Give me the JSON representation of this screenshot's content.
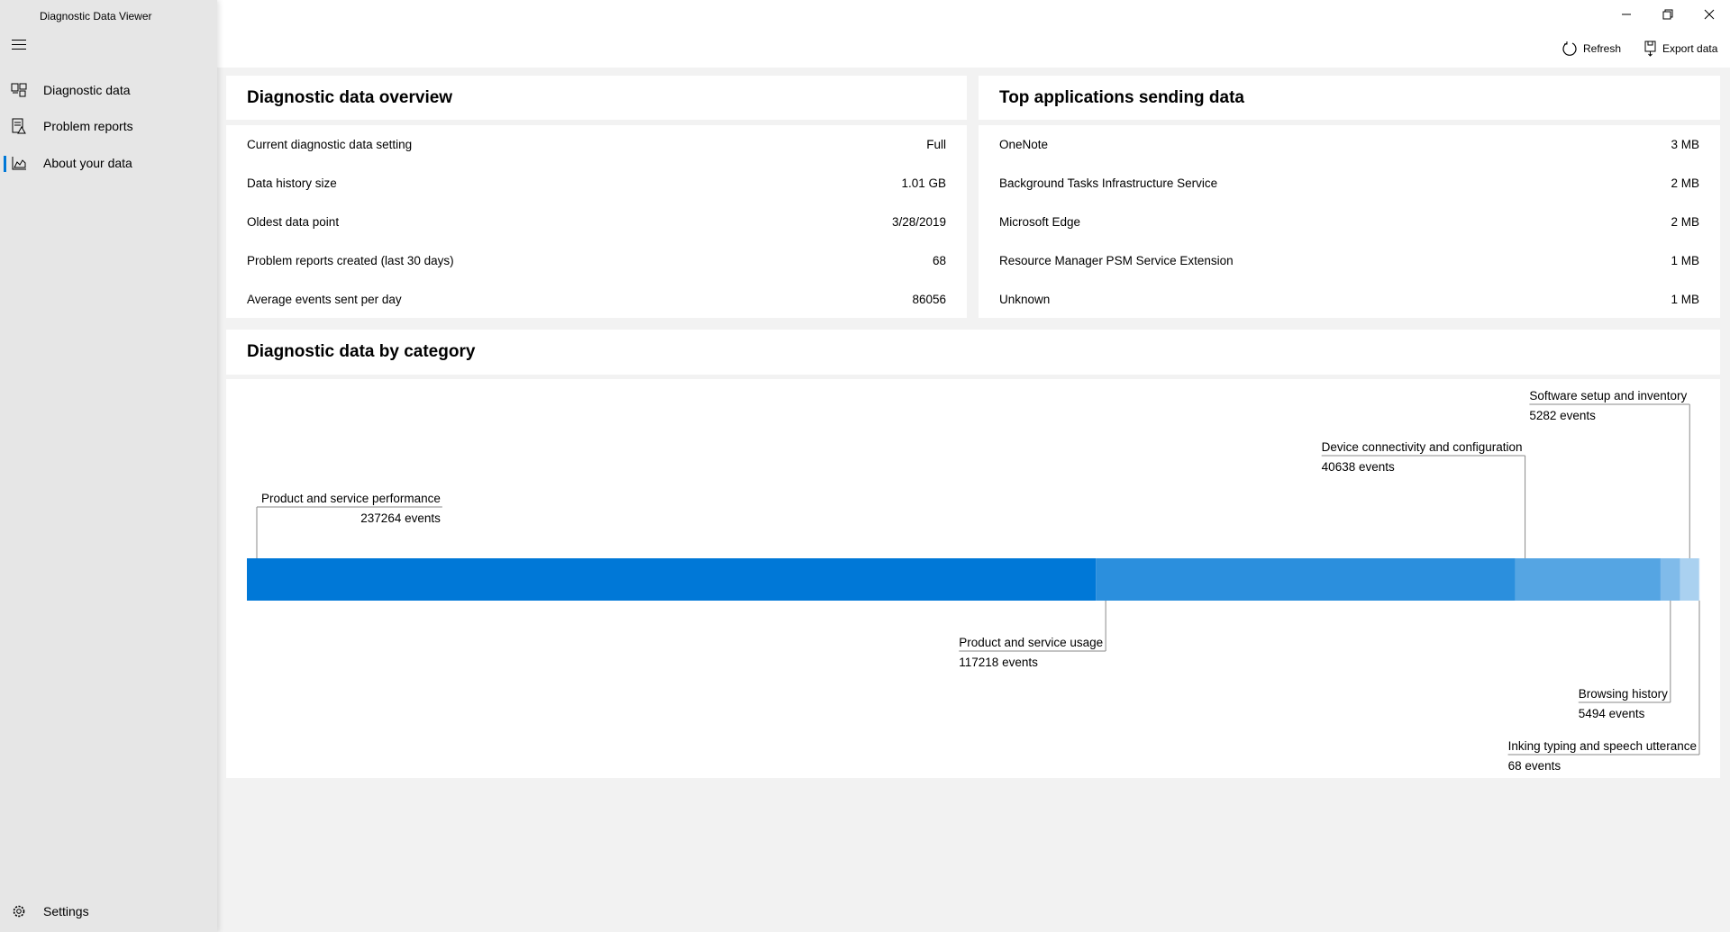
{
  "app": {
    "title": "Diagnostic Data Viewer"
  },
  "sidebar": {
    "items": [
      {
        "label": "Diagnostic data",
        "icon": "diagnostic-data-icon"
      },
      {
        "label": "Problem reports",
        "icon": "problem-reports-icon"
      },
      {
        "label": "About your data",
        "icon": "about-data-icon",
        "selected": true
      }
    ],
    "settings_label": "Settings"
  },
  "toolbar": {
    "refresh_label": "Refresh",
    "export_label": "Export data"
  },
  "overview": {
    "title": "Diagnostic data overview",
    "rows": [
      {
        "label": "Current diagnostic data setting",
        "value": "Full"
      },
      {
        "label": "Data history size",
        "value": "1.01 GB"
      },
      {
        "label": "Oldest data point",
        "value": "3/28/2019"
      },
      {
        "label": "Problem reports created (last 30 days)",
        "value": "68"
      },
      {
        "label": "Average events sent per day",
        "value": "86056"
      }
    ]
  },
  "top_apps": {
    "title": "Top applications sending data",
    "rows": [
      {
        "label": "OneNote",
        "value": "3 MB"
      },
      {
        "label": "Background Tasks Infrastructure Service",
        "value": "2 MB"
      },
      {
        "label": "Microsoft Edge",
        "value": "2 MB"
      },
      {
        "label": "Resource Manager PSM Service Extension",
        "value": "1 MB"
      },
      {
        "label": "Unknown",
        "value": "1 MB"
      }
    ]
  },
  "category": {
    "title": "Diagnostic data by category"
  },
  "chart_data": {
    "type": "bar",
    "orientation": "stacked-horizontal",
    "unit_suffix": "events",
    "categories": [
      "Product and service performance",
      "Product and service usage",
      "Device connectivity and configuration",
      "Browsing history",
      "Software setup and inventory",
      "Inking typing and speech utterance"
    ],
    "values": [
      237264,
      117218,
      40638,
      5494,
      5282,
      68
    ],
    "colors": [
      "#0078d7",
      "#2b8fdd",
      "#55a5e3",
      "#80bbea",
      "#aad1f0",
      "#cfe4f6"
    ]
  }
}
